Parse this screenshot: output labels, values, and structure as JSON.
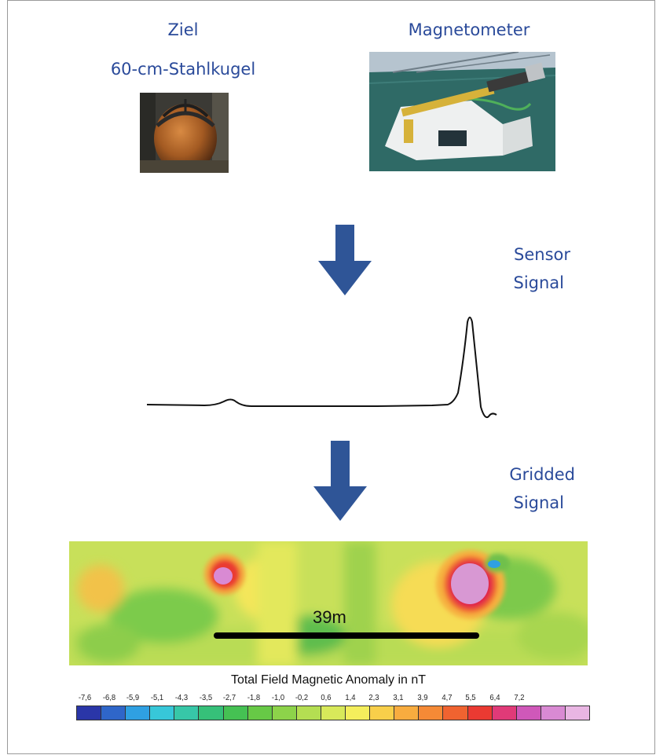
{
  "labels": {
    "target_heading": "Ziel",
    "target_name": "60-cm-Stahlkugel",
    "magnetometer": "Magnetometer",
    "sensor_signal_line1": "Sensor",
    "sensor_signal_line2": "Signal",
    "gridded_signal_line1": "Gridded",
    "gridded_signal_line2": "Signal"
  },
  "map": {
    "scale_label": "39m"
  },
  "legend": {
    "title": "Total Field Magnetic Anomaly in nT",
    "ticks": [
      "-7,6",
      "-6,8",
      "-5,9",
      "-5,1",
      "-4,3",
      "-3,5",
      "-2,7",
      "-1,8",
      "-1,0",
      "-0,2",
      "0,6",
      "1,4",
      "2,3",
      "3,1",
      "3,9",
      "4,7",
      "5,5",
      "6,4",
      "7,2"
    ],
    "colors": [
      "#2a36a8",
      "#2f66c9",
      "#2fa0e2",
      "#37c7d9",
      "#37c7a8",
      "#36c079",
      "#45c153",
      "#67c946",
      "#8dd34a",
      "#b4de52",
      "#d8e95a",
      "#f4ee5c",
      "#f8cf4a",
      "#f8ac3f",
      "#f58a36",
      "#f06330",
      "#ea3a32",
      "#e03a78",
      "#cf58b9",
      "#d98ad3",
      "#e9b6e3"
    ]
  },
  "colors": {
    "label_blue": "#2a4a9a",
    "arrow_blue": "#2f5597"
  },
  "icons": {
    "target_photo": "steel-sphere-photo",
    "magnetometer_photo": "magnetometer-device-photo"
  }
}
